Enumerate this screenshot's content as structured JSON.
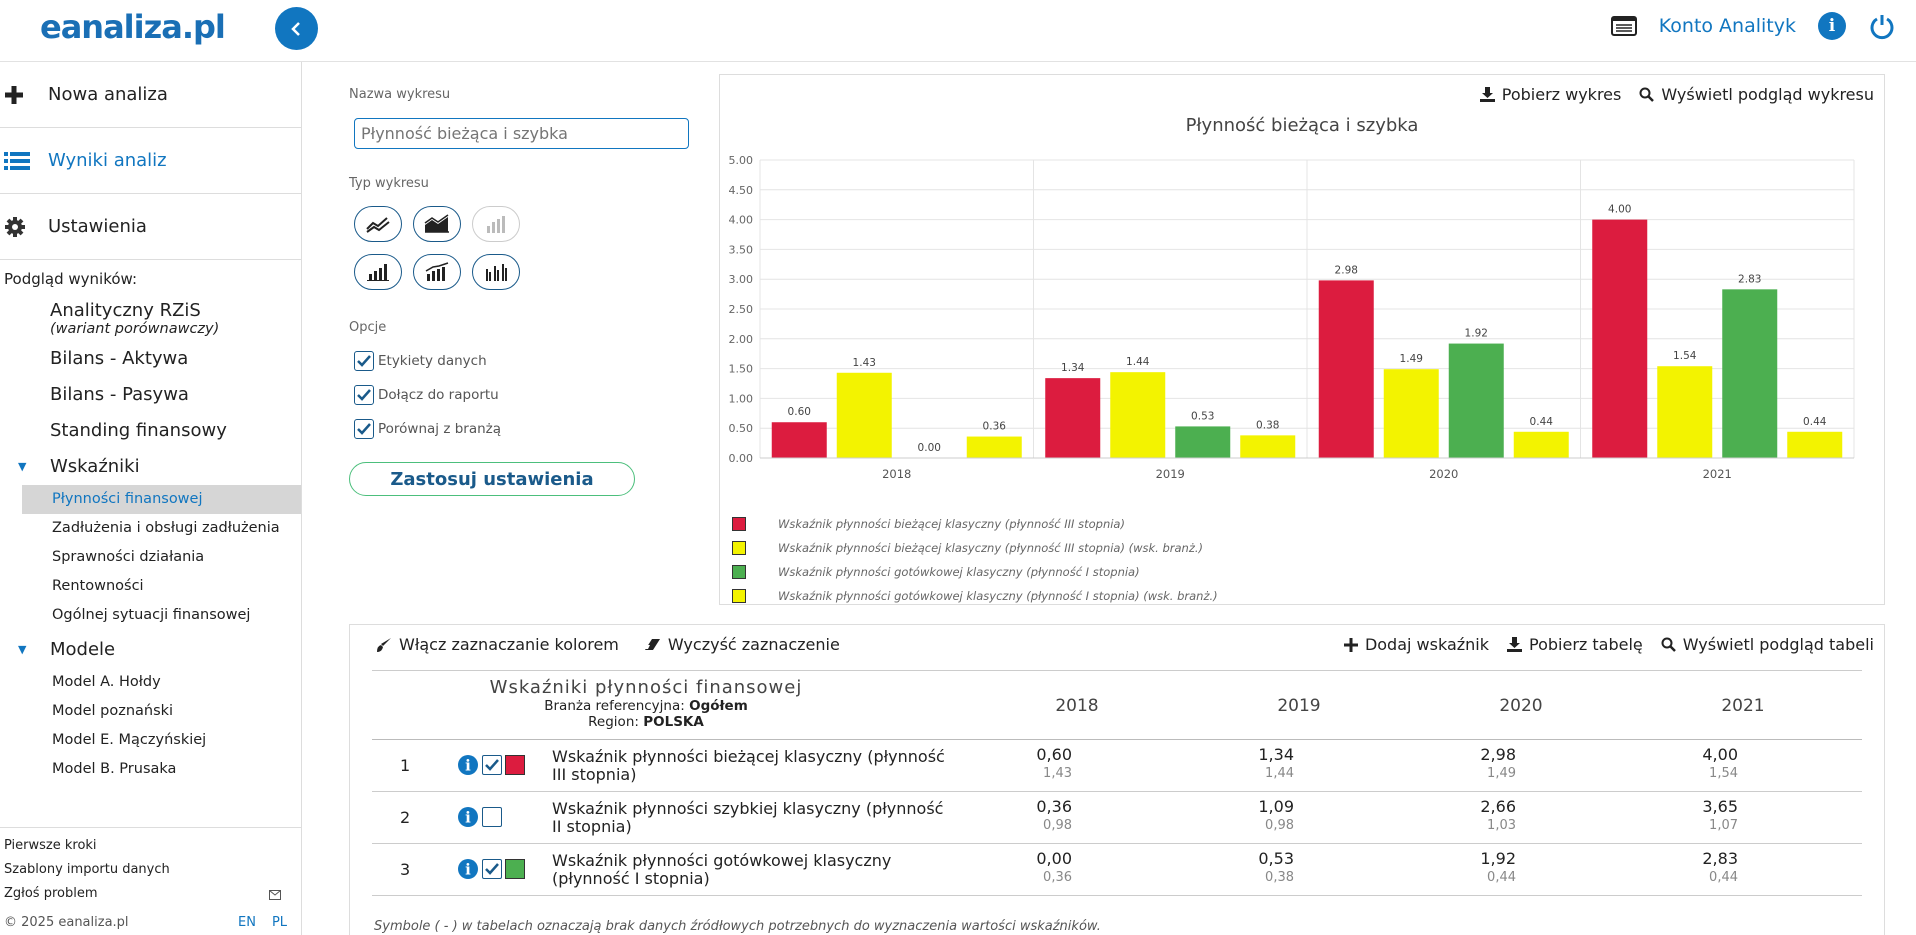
{
  "header": {
    "logo_e": "e",
    "logo_rest": "analiza.pl",
    "account": "Konto Analityk"
  },
  "sidebar": {
    "main": [
      {
        "label": "Nowa analiza",
        "icon": "plus-icon"
      },
      {
        "label": "Wyniki analiz",
        "icon": "list-icon"
      },
      {
        "label": "Ustawienia",
        "icon": "gear-icon"
      }
    ],
    "caption": "Podgląd wyników:",
    "items": [
      {
        "label": "Analityczny RZiS",
        "sub": "(wariant porównawczy)"
      },
      {
        "label": "Bilans - Aktywa"
      },
      {
        "label": "Bilans - Pasywa"
      },
      {
        "label": "Standing finansowy"
      }
    ],
    "wskazniki_label": "Wskaźniki",
    "wskazniki": [
      "Płynności finansowej",
      "Zadłużenia i obsługi zadłużenia",
      "Sprawności działania",
      "Rentowności",
      "Ogólnej sytuacji finansowej"
    ],
    "modele_label": "Modele",
    "modele": [
      "Model A. Hołdy",
      "Model poznański",
      "Model E. Mączyńskiej",
      "Model B. Prusaka"
    ],
    "footer": [
      "Pierwsze kroki",
      "Szablony importu danych",
      "Zgłoś problem"
    ],
    "copyright": "© 2025 eanaliza.pl",
    "lang_en": "EN",
    "lang_pl": "PL"
  },
  "settings": {
    "name_label": "Nazwa wykresu",
    "name_value": "Płynność bieżąca i szybka",
    "type_label": "Typ wykresu",
    "options_label": "Opcje",
    "options": [
      "Etykiety danych",
      "Dołącz do raportu",
      "Porównaj z branżą"
    ],
    "apply": "Zastosuj ustawienia"
  },
  "chart_tools": {
    "download": "Pobierz wykres",
    "preview": "Wyświetl podgląd wykresu"
  },
  "chart_data": {
    "type": "bar",
    "title": "Płynność bieżąca i szybka",
    "categories": [
      "2018",
      "2019",
      "2020",
      "2021"
    ],
    "ylim": [
      0,
      5
    ],
    "yticks": [
      "0.00",
      "0.50",
      "1.00",
      "1.50",
      "2.00",
      "2.50",
      "3.00",
      "3.50",
      "4.00",
      "4.50",
      "5.00"
    ],
    "grid": true,
    "legend_position": "bottom-left",
    "series": [
      {
        "name": "Wskaźnik płynności bieżącej klasyczny (płynność III stopnia)",
        "color": "#dc1c3f",
        "values": [
          0.6,
          1.34,
          2.98,
          4.0
        ],
        "labels": [
          "0.60",
          "1.34",
          "2.98",
          "4.00"
        ]
      },
      {
        "name": "Wskaźnik płynności bieżącej klasyczny (płynność III stopnia) (wsk. branż.)",
        "color": "#f3f300",
        "values": [
          1.43,
          1.44,
          1.49,
          1.54
        ],
        "labels": [
          "1.43",
          "1.44",
          "1.49",
          "1.54"
        ]
      },
      {
        "name": "Wskaźnik płynności gotówkowej klasyczny (płynność I stopnia)",
        "color": "#4caf50",
        "values": [
          0.0,
          0.53,
          1.92,
          2.83
        ],
        "labels": [
          "0.00",
          "0.53",
          "1.92",
          "2.83"
        ]
      },
      {
        "name": "Wskaźnik płynności gotówkowej klasyczny (płynność I stopnia) (wsk. branż.)",
        "color": "#f3f300",
        "values": [
          0.36,
          0.38,
          0.44,
          0.44
        ],
        "labels": [
          "0.36",
          "0.38",
          "0.44",
          "0.44"
        ]
      }
    ]
  },
  "table_tools": {
    "color_mark": "Włącz zaznaczanie kolorem",
    "clear_mark": "Wyczyść zaznaczenie",
    "add": "Dodaj wskaźnik",
    "download": "Pobierz tabelę",
    "preview": "Wyświetl podgląd tabeli"
  },
  "table": {
    "title": "Wskaźniki płynności finansowej",
    "branch_label": "Branża referencyjna:",
    "branch_value": "Ogółem",
    "region_label": "Region:",
    "region_value": "POLSKA",
    "years": [
      "2018",
      "2019",
      "2020",
      "2021"
    ],
    "rows": [
      {
        "num": "1",
        "name": "Wskaźnik płynności bieżącej klasyczny (płynność III stopnia)",
        "checked": true,
        "color": "#dc1c3f",
        "values": [
          "0,60",
          "1,34",
          "2,98",
          "4,00"
        ],
        "bench": [
          "1,43",
          "1,44",
          "1,49",
          "1,54"
        ]
      },
      {
        "num": "2",
        "name": "Wskaźnik płynności szybkiej klasyczny (płynność II stopnia)",
        "checked": false,
        "color": "",
        "values": [
          "0,36",
          "1,09",
          "2,66",
          "3,65"
        ],
        "bench": [
          "0,98",
          "0,98",
          "1,03",
          "1,07"
        ]
      },
      {
        "num": "3",
        "name": "Wskaźnik płynności gotówkowej klasyczny (płynność I stopnia)",
        "checked": true,
        "color": "#4caf50",
        "values": [
          "0,00",
          "0,53",
          "1,92",
          "2,83"
        ],
        "bench": [
          "0,36",
          "0,38",
          "0,44",
          "0,44"
        ]
      }
    ],
    "note": "Symbole ( - ) w tabelach oznaczają brak danych źródłowych potrzebnych do wyznaczenia wartości wskaźników."
  }
}
